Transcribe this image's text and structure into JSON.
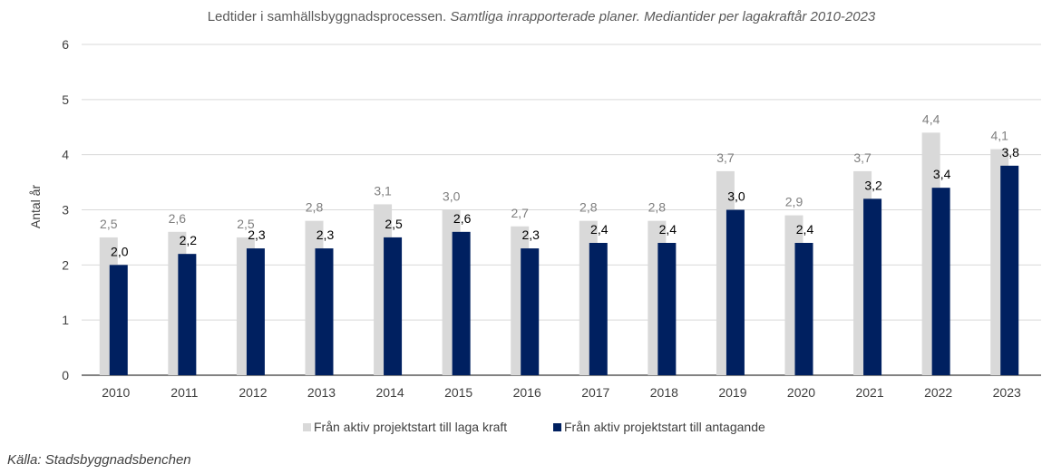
{
  "chart_data": {
    "type": "bar",
    "title": "Ledtider i samhällsbyggnadsprocessen.",
    "subtitle": "Samtliga inrapporterade planer. Mediantider per lagakraftår 2010-2023",
    "ylabel": "Antal år",
    "xlabel": "",
    "ylim": [
      0,
      6
    ],
    "yticks": [
      0,
      1,
      2,
      3,
      4,
      5,
      6
    ],
    "grid": true,
    "legend_position": "bottom",
    "categories": [
      "2010",
      "2011",
      "2012",
      "2013",
      "2014",
      "2015",
      "2016",
      "2017",
      "2018",
      "2019",
      "2020",
      "2021",
      "2022",
      "2023"
    ],
    "series": [
      {
        "name": "Från aktiv projektstart till laga kraft",
        "color": "#d9d9d9",
        "values": [
          2.5,
          2.6,
          2.5,
          2.8,
          3.1,
          3.0,
          2.7,
          2.8,
          2.8,
          3.7,
          2.9,
          3.7,
          4.4,
          4.1
        ],
        "labels": [
          "2,5",
          "2,6",
          "2,5",
          "2,8",
          "3,1",
          "3,0",
          "2,7",
          "2,8",
          "2,8",
          "3,7",
          "2,9",
          "3,7",
          "4,4",
          "4,1"
        ]
      },
      {
        "name": "Från aktiv projektstart till antagande",
        "color": "#002060",
        "values": [
          2.0,
          2.2,
          2.3,
          2.3,
          2.5,
          2.6,
          2.3,
          2.4,
          2.4,
          3.0,
          2.4,
          3.2,
          3.4,
          3.8
        ],
        "labels": [
          "2,0",
          "2,2",
          "2,3",
          "2,3",
          "2,5",
          "2,6",
          "2,3",
          "2,4",
          "2,4",
          "3,0",
          "2,4",
          "3,2",
          "3,4",
          "3,8"
        ]
      }
    ]
  },
  "source": "Källa: Stadsbyggnadsbenchen"
}
